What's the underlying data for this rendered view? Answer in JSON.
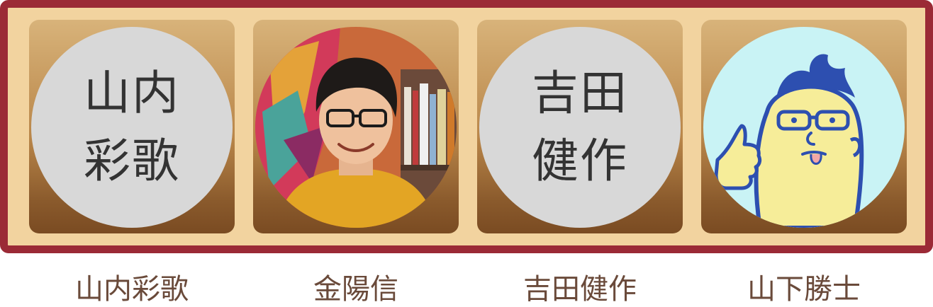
{
  "members": [
    {
      "name": "山内彩歌",
      "avatar_type": "initials",
      "avatar_text": "山内彩歌"
    },
    {
      "name": "金陽信",
      "avatar_type": "photo",
      "avatar_icon": "portrait-photo"
    },
    {
      "name": "吉田健作",
      "avatar_type": "initials",
      "avatar_text": "吉田健作"
    },
    {
      "name": "山下勝士",
      "avatar_type": "illustration",
      "avatar_icon": "cartoon-thumbs-up"
    }
  ],
  "colors": {
    "frame": "#9b2a36",
    "panel": "#f2d39f",
    "initials_bg": "#d8d8d8",
    "name_text": "#6a4a3a"
  }
}
